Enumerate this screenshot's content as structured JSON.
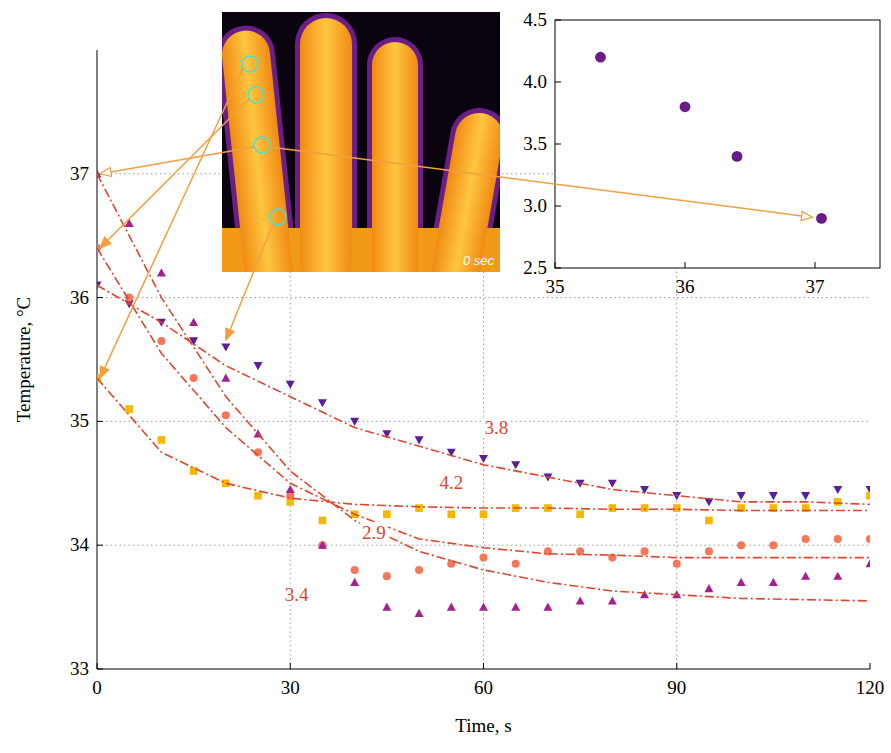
{
  "chart_data": [
    {
      "type": "scatter",
      "x_label": "Time, s",
      "y_label": "Temperature, °C",
      "xlim": [
        0,
        120
      ],
      "ylim": [
        33,
        38
      ],
      "xticks": [
        0,
        30,
        60,
        90,
        120
      ],
      "yticks": [
        33,
        34,
        35,
        36,
        37
      ],
      "grid": true,
      "series": [
        {
          "type": "scatter",
          "color": "#5a1d9c",
          "marker": "triangle-down",
          "x": [
            0,
            5,
            10,
            15,
            20,
            25,
            30,
            35,
            40,
            45,
            50,
            55,
            60,
            65,
            70,
            75,
            80,
            85,
            90,
            95,
            100,
            105,
            110,
            115,
            120
          ],
          "values": [
            36.1,
            35.95,
            35.8,
            35.65,
            35.6,
            35.45,
            35.3,
            35.15,
            35.0,
            34.9,
            34.85,
            34.75,
            34.7,
            34.65,
            34.55,
            34.5,
            34.5,
            34.45,
            34.4,
            34.35,
            34.4,
            34.4,
            34.4,
            34.45,
            34.45
          ]
        },
        {
          "type": "scatter",
          "color": "#f5b800",
          "marker": "square",
          "x": [
            0,
            5,
            10,
            15,
            20,
            25,
            30,
            35,
            40,
            45,
            50,
            55,
            60,
            65,
            70,
            75,
            80,
            85,
            90,
            95,
            100,
            105,
            110,
            115,
            120
          ],
          "values": [
            35.35,
            35.1,
            34.85,
            34.6,
            34.5,
            34.4,
            34.35,
            34.2,
            34.25,
            34.25,
            34.3,
            34.25,
            34.25,
            34.3,
            34.3,
            34.25,
            34.3,
            34.3,
            34.3,
            34.2,
            34.3,
            34.3,
            34.3,
            34.35,
            34.4
          ]
        },
        {
          "type": "scatter",
          "color": "#f4775a",
          "marker": "circle",
          "x": [
            0,
            5,
            10,
            15,
            20,
            25,
            30,
            35,
            40,
            45,
            50,
            55,
            60,
            65,
            70,
            75,
            80,
            85,
            90,
            95,
            100,
            105,
            110,
            115,
            120
          ],
          "values": [
            36.4,
            36.0,
            35.65,
            35.35,
            35.05,
            34.75,
            34.4,
            34.0,
            33.8,
            33.75,
            33.8,
            33.85,
            33.9,
            33.85,
            33.95,
            33.95,
            33.9,
            33.95,
            33.85,
            33.95,
            34.0,
            34.0,
            34.05,
            34.05,
            34.05
          ]
        },
        {
          "type": "scatter",
          "color": "#a3228e",
          "marker": "triangle-up",
          "x": [
            0,
            5,
            10,
            15,
            20,
            25,
            30,
            35,
            40,
            45,
            50,
            55,
            60,
            65,
            70,
            75,
            80,
            85,
            90,
            95,
            100,
            105,
            110,
            115,
            120
          ],
          "values": [
            37.0,
            36.6,
            36.2,
            35.8,
            35.35,
            34.9,
            34.45,
            34.0,
            33.7,
            33.5,
            33.45,
            33.5,
            33.5,
            33.5,
            33.5,
            33.55,
            33.55,
            33.6,
            33.6,
            33.65,
            33.7,
            33.7,
            33.75,
            33.75,
            33.85
          ]
        },
        {
          "type": "line",
          "line_style": "dashdot",
          "color": "#e0452c",
          "x": [
            0,
            10,
            20,
            30,
            40,
            50,
            60,
            70,
            80,
            90,
            100,
            110,
            120
          ],
          "values": [
            36.1,
            35.8,
            35.45,
            35.2,
            34.95,
            34.8,
            34.65,
            34.55,
            34.45,
            34.4,
            34.35,
            34.35,
            34.33
          ]
        },
        {
          "type": "line",
          "line_style": "dashdot",
          "color": "#e0452c",
          "x": [
            0,
            10,
            20,
            30,
            40,
            50,
            60,
            70,
            80,
            90,
            100,
            110,
            120
          ],
          "values": [
            35.35,
            34.75,
            34.5,
            34.38,
            34.33,
            34.31,
            34.3,
            34.3,
            34.29,
            34.29,
            34.28,
            34.28,
            34.28
          ]
        },
        {
          "type": "line",
          "line_style": "dashdot",
          "color": "#e0452c",
          "x": [
            0,
            10,
            20,
            30,
            40,
            50,
            60,
            70,
            80,
            90,
            100,
            110,
            120
          ],
          "values": [
            36.4,
            35.55,
            34.95,
            34.5,
            34.25,
            34.05,
            33.98,
            33.93,
            33.92,
            33.9,
            33.9,
            33.9,
            33.9
          ]
        },
        {
          "type": "line",
          "line_style": "dashdot",
          "color": "#e0452c",
          "x": [
            0,
            10,
            20,
            30,
            40,
            50,
            60,
            70,
            80,
            90,
            100,
            110,
            120
          ],
          "values": [
            37.0,
            36.0,
            35.2,
            34.6,
            34.2,
            33.95,
            33.8,
            33.7,
            33.63,
            33.6,
            33.57,
            33.56,
            33.55
          ]
        }
      ],
      "annotations": [
        {
          "text": "3.8",
          "x": 62,
          "y": 34.95,
          "color": "#e0452c"
        },
        {
          "text": "4.2",
          "x": 55,
          "y": 34.5,
          "color": "#e0452c"
        },
        {
          "text": "2.9",
          "x": 43,
          "y": 34.1,
          "color": "#e0452c"
        },
        {
          "text": "3.4",
          "x": 31,
          "y": 33.6,
          "color": "#e0452c"
        }
      ]
    },
    {
      "type": "scatter",
      "xlim": [
        35,
        37.5
      ],
      "ylim": [
        2.5,
        4.5
      ],
      "xticks": [
        35,
        36,
        37
      ],
      "yticks": [
        2.5,
        {
          "value": 3,
          "label": "3.0"
        },
        3.5,
        {
          "value": 4,
          "label": "4.0"
        },
        4.5
      ],
      "series": [
        {
          "type": "scatter",
          "color": "#6a1b8a",
          "marker": "circle",
          "x": [
            35.35,
            36.0,
            36.4,
            37.05
          ],
          "values": [
            4.2,
            3.8,
            3.4,
            2.9
          ]
        }
      ]
    }
  ],
  "inset_image": {
    "label": "0 sec"
  }
}
